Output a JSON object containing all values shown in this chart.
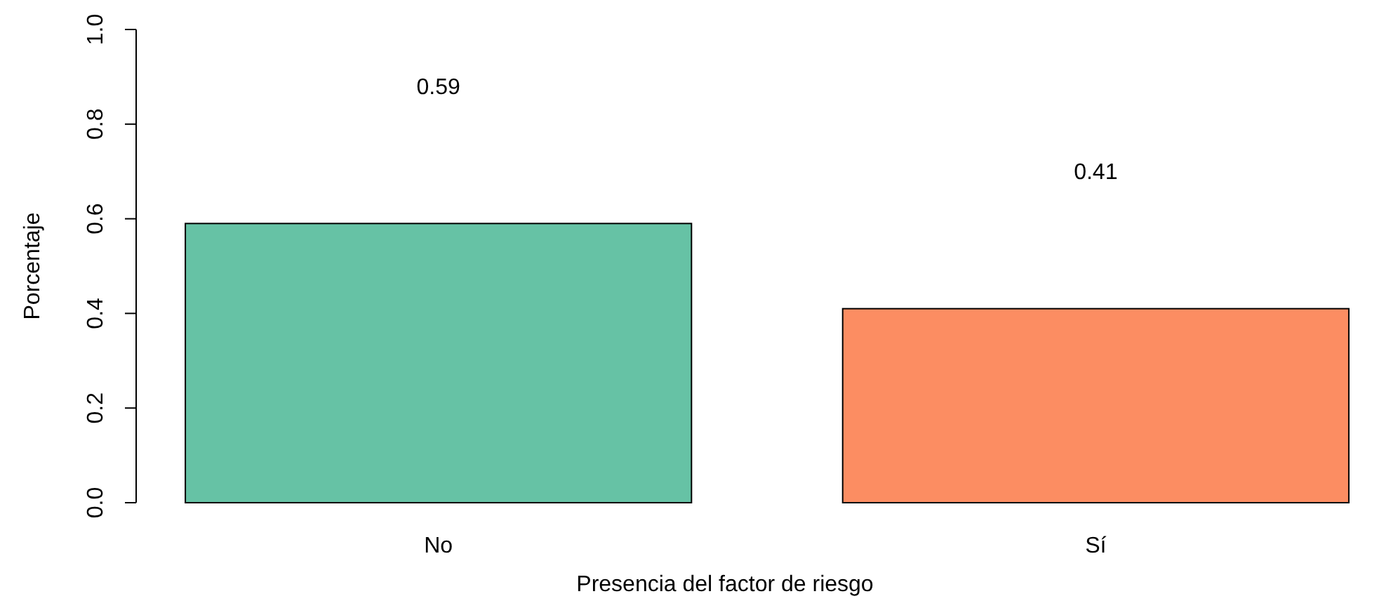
{
  "chart_data": {
    "type": "bar",
    "xlabel": "Presencia del factor de riesgo",
    "ylabel": "Porcentaje",
    "categories": [
      "No",
      "Sí"
    ],
    "values": [
      0.59,
      0.41
    ],
    "colors": [
      "#66c2a5",
      "#fc8d62"
    ],
    "ylim": [
      0,
      1
    ],
    "yticks": [
      {
        "value": 0,
        "label": "0.0"
      },
      {
        "value": 0.2,
        "label": "0.2"
      },
      {
        "value": 0.4,
        "label": "0.4"
      },
      {
        "value": 0.6,
        "label": "0.6"
      },
      {
        "value": 0.8,
        "label": "0.8"
      },
      {
        "value": 1,
        "label": "1.0"
      }
    ],
    "annotations": [
      "0.59",
      "0.41"
    ],
    "grid": false
  }
}
